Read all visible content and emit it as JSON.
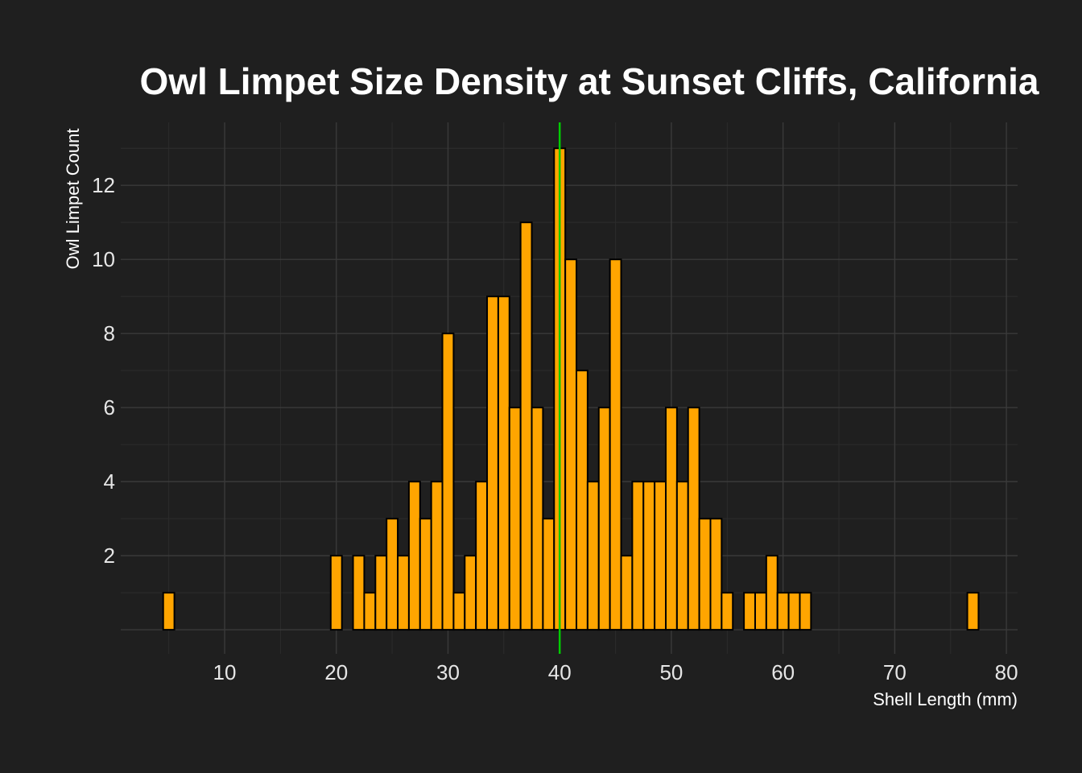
{
  "chart_data": {
    "type": "bar",
    "title": "Owl Limpet Size Density at Sunset Cliffs, California",
    "xlabel": "Shell Length (mm)",
    "ylabel": "Owl Limpet Count",
    "xlim": [
      0.7,
      81
    ],
    "ylim": [
      -0.65,
      13.7
    ],
    "x_ticks": [
      10,
      20,
      30,
      40,
      50,
      60,
      70,
      80
    ],
    "y_ticks": [
      2,
      4,
      6,
      8,
      10,
      12
    ],
    "bin_width": 1,
    "x": [
      5,
      20,
      22,
      23,
      24,
      25,
      26,
      27,
      28,
      29,
      30,
      31,
      32,
      33,
      34,
      35,
      36,
      37,
      38,
      39,
      40,
      41,
      42,
      43,
      44,
      45,
      46,
      47,
      48,
      49,
      50,
      51,
      52,
      53,
      54,
      55,
      57,
      58,
      59,
      60,
      61,
      62,
      77
    ],
    "values": [
      1,
      2,
      2,
      1,
      2,
      3,
      2,
      4,
      3,
      4,
      8,
      1,
      2,
      4,
      9,
      9,
      6,
      11,
      6,
      3,
      13,
      10,
      7,
      4,
      6,
      10,
      2,
      4,
      4,
      4,
      6,
      4,
      6,
      3,
      3,
      1,
      1,
      1,
      2,
      1,
      1,
      1,
      1
    ],
    "reference_line": {
      "x": 40,
      "color": "#00cc00"
    },
    "bar_color": "#ffa500",
    "grid": true,
    "legend": "none"
  }
}
